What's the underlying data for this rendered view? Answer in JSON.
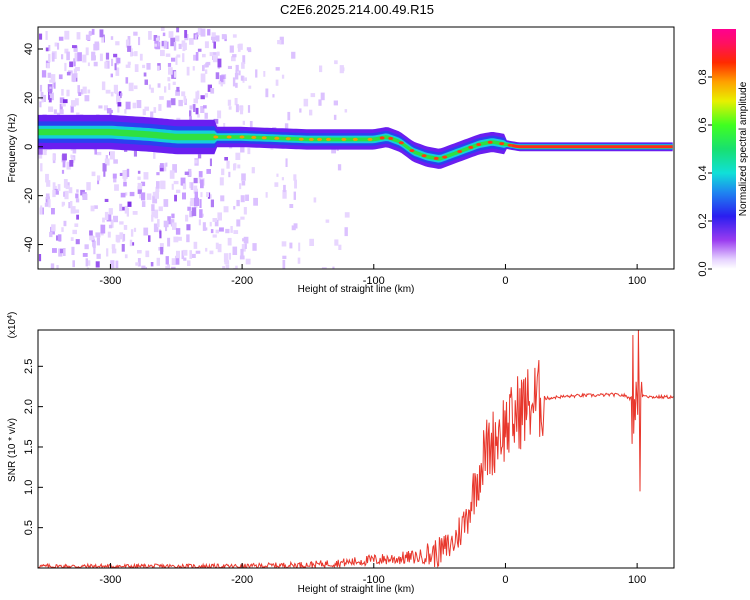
{
  "title": "C2E6.2025.214.00.49.R15",
  "chart_data": [
    {
      "type": "heatmap",
      "xlabel": "Height of straight line (km)",
      "ylabel": "Frequency (Hz)",
      "xlim": [
        -355,
        128
      ],
      "ylim": [
        -50,
        49
      ],
      "xticks": [
        -300,
        -200,
        -100,
        0,
        100
      ],
      "xtick_labels": [
        "-300",
        "-200",
        "-100",
        "0",
        "100"
      ],
      "yticks": [
        -40,
        -20,
        0,
        20,
        40
      ],
      "ytick_labels": [
        "-40",
        "-20",
        "0",
        "20",
        "40"
      ],
      "colorbar": {
        "label": "Normalized spectral amplitude",
        "range": [
          0,
          1
        ],
        "ticks": [
          0.0,
          0.2,
          0.4,
          0.6,
          0.8
        ],
        "tick_labels": [
          "0.0",
          "0.2",
          "0.4",
          "0.6",
          "0.8"
        ]
      },
      "ridge": {
        "x": [
          -355,
          -330,
          -300,
          -270,
          -250,
          -220,
          -200,
          -150,
          -120,
          -100,
          -90,
          -80,
          -70,
          -60,
          -50,
          -40,
          -30,
          -20,
          -10,
          0,
          10,
          50,
          100,
          128
        ],
        "y": [
          6,
          6,
          6,
          5,
          4,
          4,
          4,
          3,
          3,
          3,
          4,
          2,
          -2,
          -4,
          -5,
          -3,
          -1,
          1,
          2,
          1,
          0,
          0,
          0,
          0
        ]
      },
      "grid": false
    },
    {
      "type": "line",
      "xlabel": "Height of straight line (km)",
      "ylabel": "SNR (10 * v/v)",
      "y_multiplier": "x10^4",
      "xlim": [
        -355,
        128
      ],
      "ylim": [
        0,
        2.95
      ],
      "xticks": [
        -300,
        -200,
        -100,
        0,
        100
      ],
      "xtick_labels": [
        "-300",
        "-200",
        "-100",
        "0",
        "100"
      ],
      "yticks": [
        0.5,
        1.0,
        1.5,
        2.0,
        2.5
      ],
      "ytick_labels": [
        "0.5",
        "1.0",
        "1.5",
        "2.0",
        "2.5"
      ],
      "series_color": "#e8372c",
      "x": [
        -355,
        -300,
        -250,
        -200,
        -180,
        -150,
        -120,
        -100,
        -80,
        -60,
        -50,
        -40,
        -35,
        -30,
        -25,
        -20,
        -15,
        -10,
        -5,
        0,
        5,
        10,
        20,
        30,
        40,
        50,
        60,
        70,
        80,
        90,
        95,
        98,
        100,
        102,
        105,
        110,
        128
      ],
      "y": [
        0.02,
        0.02,
        0.02,
        0.02,
        0.03,
        0.04,
        0.07,
        0.1,
        0.12,
        0.15,
        0.2,
        0.3,
        0.45,
        0.6,
        0.9,
        1.2,
        1.45,
        1.55,
        1.7,
        1.75,
        1.8,
        1.95,
        2.05,
        2.1,
        2.12,
        2.13,
        2.14,
        2.14,
        2.15,
        2.14,
        2.1,
        2.3,
        2.5,
        2.1,
        2.15,
        2.12,
        2.12
      ],
      "grid": false
    }
  ]
}
